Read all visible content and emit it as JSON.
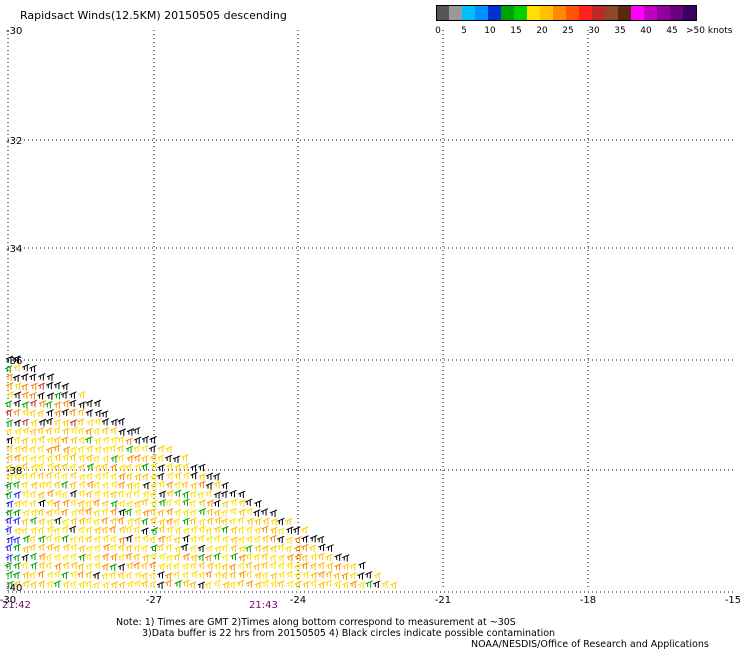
{
  "title": "Rapidsact Winds(12.5KM) 20150505 descending",
  "colorbar": {
    "segments": [
      "#555555",
      "#999999",
      "#00bfff",
      "#0090ff",
      "#0030d0",
      "#00a000",
      "#00d000",
      "#ffe000",
      "#ffc000",
      "#ff8800",
      "#ff5500",
      "#ff2020",
      "#c02828",
      "#8a4a2a",
      "#5a2a10",
      "#ff00ff",
      "#c000c0",
      "#9000a0",
      "#6a0080",
      "#3a0060"
    ],
    "labels": [
      "0",
      "5",
      "10",
      "15",
      "20",
      "25",
      "30",
      "35",
      "40",
      "45"
    ],
    "unit": ">50 knots"
  },
  "axes": {
    "lat_labels": [
      "-30",
      "-32",
      "-34",
      "-36",
      "-38",
      "-40"
    ],
    "lon_labels": [
      "-30",
      "-27",
      "-24",
      "-21",
      "-18",
      "-15"
    ]
  },
  "time_labels": {
    "left": "21:42",
    "mid": "21:43"
  },
  "notes": {
    "line1": "Note: 1) Times are GMT 2)Times along bottom correspond to measurement at ~30S",
    "line2": "3)Data buffer is 22 hrs from 20150505 4) Black circles indicate possible contamination",
    "line3": "NOAA/NESDIS/Office of Research and Applications"
  }
}
